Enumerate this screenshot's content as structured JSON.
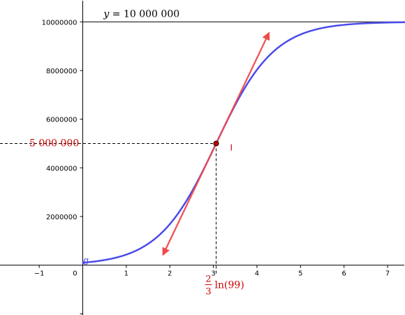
{
  "chart_data": {
    "type": "line",
    "xlim": [
      -1.9,
      7.4
    ],
    "ylim": [
      -2050000,
      10900000
    ],
    "grid": false,
    "x_ticks": [
      {
        "value": -1,
        "label": "−1"
      },
      {
        "value": 0,
        "label": "0"
      },
      {
        "value": 1,
        "label": "1"
      },
      {
        "value": 2,
        "label": "2"
      },
      {
        "value": 3,
        "label": "3"
      },
      {
        "value": 4,
        "label": "4"
      },
      {
        "value": 5,
        "label": "5"
      },
      {
        "value": 6,
        "label": "6"
      },
      {
        "value": 7,
        "label": "7"
      }
    ],
    "y_ticks": [
      {
        "value": 2000000,
        "label": "2000000"
      },
      {
        "value": 4000000,
        "label": "4000000"
      },
      {
        "value": 6000000,
        "label": "6000000"
      },
      {
        "value": 8000000,
        "label": "8000000"
      },
      {
        "value": 10000000,
        "label": "10000000"
      }
    ],
    "curve": {
      "name": "g",
      "color": "#4b4bea",
      "formula": "10000000 / (1 + 99 * exp(-1.5 * x))",
      "x_start": 0,
      "x_end": 7.4,
      "carrying_capacity": 10000000,
      "initial_value": 100000,
      "rate": 1.5
    },
    "asymptote": {
      "y": 10000000,
      "label_var": "y",
      "label_value": "10 000 000"
    },
    "inflection_point": {
      "name": "I",
      "x": 3.0635,
      "y": 5000000,
      "color": "#cc0000",
      "y_label": "5 000 000",
      "x_label_num": "2",
      "x_label_den": "3",
      "x_label_fn": "ln(99)"
    },
    "tangent": {
      "color": "#f04b4b",
      "x_from": 1.84,
      "x_to": 4.28
    }
  }
}
